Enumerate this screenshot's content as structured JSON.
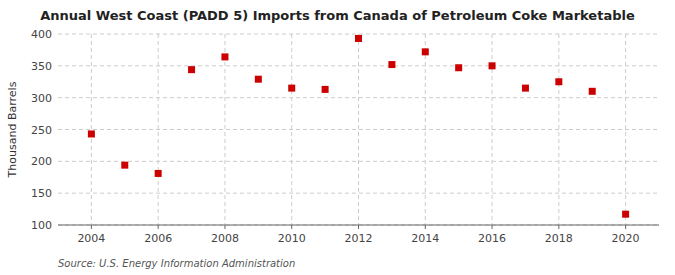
{
  "chart_data": {
    "type": "scatter",
    "title": "Annual West Coast (PADD 5) Imports from Canada of Petroleum Coke Marketable",
    "ylabel": "Thousand Barrels",
    "source": "Source: U.S. Energy Information Administration",
    "x": [
      2004,
      2005,
      2006,
      2007,
      2008,
      2009,
      2010,
      2011,
      2012,
      2013,
      2014,
      2015,
      2016,
      2017,
      2018,
      2019,
      2020
    ],
    "values": [
      243,
      194,
      181,
      344,
      364,
      329,
      315,
      313,
      393,
      352,
      372,
      347,
      350,
      315,
      325,
      310,
      117
    ],
    "color": "#cc0000",
    "marker": "square",
    "xlim": [
      2003,
      2021
    ],
    "xticks": [
      2004,
      2006,
      2008,
      2010,
      2012,
      2014,
      2016,
      2018,
      2020
    ],
    "ylim": [
      100,
      400
    ],
    "yticks": [
      100,
      150,
      200,
      250,
      300,
      350,
      400
    ],
    "grid": true
  }
}
